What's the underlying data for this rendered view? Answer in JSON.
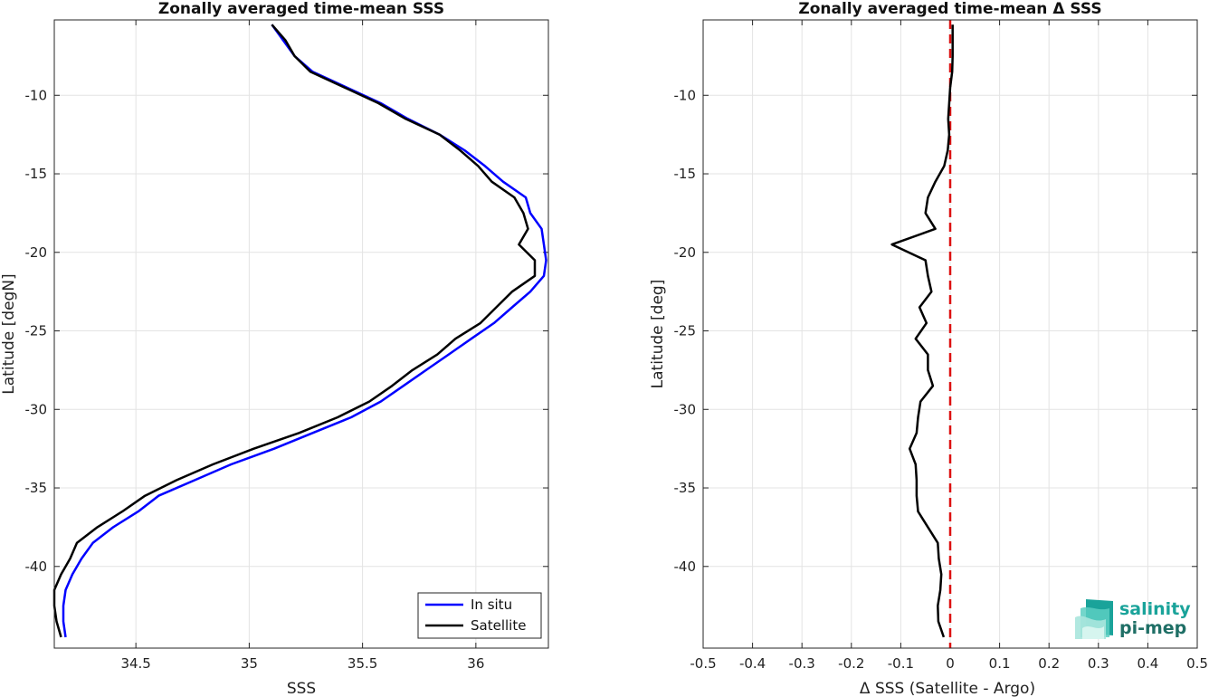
{
  "chart_data": [
    {
      "type": "line",
      "title": "Zonally averaged time-mean SSS",
      "xlabel": "SSS",
      "ylabel": "Latitude [degN]",
      "xlim": [
        34.14,
        36.32
      ],
      "ylim": [
        -45.2,
        -5.2
      ],
      "xticks": [
        34.5,
        35,
        35.5,
        36
      ],
      "xtick_labels": [
        "34.5",
        "35",
        "35.5",
        "36"
      ],
      "yticks": [
        -40,
        -35,
        -30,
        -25,
        -20,
        -15,
        -10
      ],
      "ytick_labels": [
        "-40",
        "-35",
        "-30",
        "-25",
        "-20",
        "-15",
        "-10"
      ],
      "grid": true,
      "legend_position": "bottom-right",
      "lat": [
        -5.5,
        -6.5,
        -7.5,
        -8.5,
        -9.5,
        -10.5,
        -11.5,
        -12.5,
        -13.5,
        -14.5,
        -15.5,
        -16.5,
        -17.5,
        -18.5,
        -19.5,
        -20.5,
        -21.5,
        -22.5,
        -23.5,
        -24.5,
        -25.5,
        -26.5,
        -27.5,
        -28.5,
        -29.5,
        -30.5,
        -31.5,
        -32.5,
        -33.5,
        -34.5,
        -35.5,
        -36.5,
        -37.5,
        -38.5,
        -39.5,
        -40.5,
        -41.5,
        -42.5,
        -43.5,
        -44.5
      ],
      "series": [
        {
          "name": "In situ",
          "color": "#0000ff",
          "x": [
            35.1,
            35.15,
            35.2,
            35.28,
            35.43,
            35.58,
            35.7,
            35.84,
            35.95,
            36.04,
            36.12,
            36.22,
            36.24,
            36.29,
            36.3,
            36.31,
            36.3,
            36.24,
            36.16,
            36.08,
            35.98,
            35.88,
            35.78,
            35.68,
            35.58,
            35.45,
            35.28,
            35.11,
            34.92,
            34.76,
            34.6,
            34.51,
            34.4,
            34.31,
            34.26,
            34.22,
            34.19,
            34.18,
            34.18,
            34.19
          ]
        },
        {
          "name": "Satellite",
          "color": "#000000",
          "x": [
            35.1,
            35.16,
            35.2,
            35.27,
            35.42,
            35.57,
            35.69,
            35.84,
            35.93,
            36.01,
            36.07,
            36.17,
            36.21,
            36.23,
            36.19,
            36.26,
            36.26,
            36.16,
            36.09,
            36.02,
            35.91,
            35.83,
            35.72,
            35.63,
            35.53,
            35.39,
            35.22,
            35.02,
            34.84,
            34.68,
            34.54,
            34.44,
            34.33,
            34.24,
            34.21,
            34.17,
            34.14,
            34.14,
            34.15,
            34.17
          ]
        }
      ]
    },
    {
      "type": "line",
      "title": "Zonally averaged time-mean Δ SSS",
      "xlabel": "Δ SSS (Satellite - Argo)",
      "ylabel": "Latitude [deg]",
      "xlim": [
        -0.5,
        0.5
      ],
      "ylim": [
        -45.2,
        -5.2
      ],
      "xticks": [
        -0.5,
        -0.4,
        -0.3,
        -0.2,
        -0.1,
        0,
        0.1,
        0.2,
        0.3,
        0.4,
        0.5
      ],
      "xtick_labels": [
        "-0.5",
        "-0.4",
        "-0.3",
        "-0.2",
        "-0.1",
        "0",
        "0.1",
        "0.2",
        "0.3",
        "0.4",
        "0.5"
      ],
      "yticks": [
        -40,
        -35,
        -30,
        -25,
        -20,
        -15,
        -10
      ],
      "ytick_labels": [
        "-40",
        "-35",
        "-30",
        "-25",
        "-20",
        "-15",
        "-10"
      ],
      "grid": true,
      "reference_line": {
        "x": 0,
        "color": "#dd1111",
        "style": "dashed"
      },
      "lat": [
        -5.5,
        -6.5,
        -7.5,
        -8.5,
        -9.5,
        -10.5,
        -11.5,
        -12.5,
        -13.5,
        -14.5,
        -15.5,
        -16.5,
        -17.5,
        -18.5,
        -19.5,
        -20.5,
        -21.5,
        -22.5,
        -23.5,
        -24.5,
        -25.5,
        -26.5,
        -27.5,
        -28.5,
        -29.5,
        -30.5,
        -31.5,
        -32.5,
        -33.5,
        -34.5,
        -35.5,
        -36.5,
        -37.5,
        -38.5,
        -39.5,
        -40.5,
        -41.5,
        -42.5,
        -43.5,
        -44.5
      ],
      "series": [
        {
          "color": "#000000",
          "x": [
            0.005,
            0.005,
            0.005,
            0.004,
            0.0,
            -0.002,
            -0.004,
            -0.002,
            -0.005,
            -0.012,
            -0.03,
            -0.045,
            -0.05,
            -0.03,
            -0.118,
            -0.05,
            -0.045,
            -0.038,
            -0.062,
            -0.048,
            -0.07,
            -0.045,
            -0.045,
            -0.035,
            -0.06,
            -0.065,
            -0.068,
            -0.082,
            -0.07,
            -0.068,
            -0.068,
            -0.065,
            -0.045,
            -0.025,
            -0.023,
            -0.018,
            -0.02,
            -0.025,
            -0.024,
            -0.013
          ]
        }
      ]
    }
  ],
  "legend": {
    "items": [
      "In situ",
      "Satellite"
    ]
  },
  "logo": {
    "line1": "salinity",
    "line2": "pi-mep"
  }
}
